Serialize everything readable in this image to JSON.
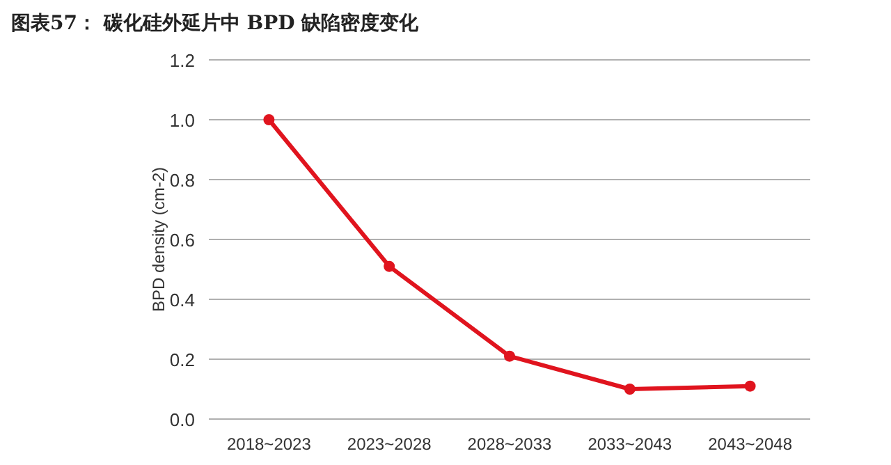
{
  "chart_data": {
    "type": "line",
    "title": "图表57：  碳化硅外延片中 BPD 缺陷密度变化",
    "ylabel": "BPD density (cm-2)",
    "categories": [
      "2018~2023",
      "2023~2028",
      "2028~2033",
      "2033~2043",
      "2043~2048"
    ],
    "series": [
      {
        "color": "#e0141e",
        "values": [
          1.0,
          0.51,
          0.21,
          0.1,
          0.11
        ]
      }
    ],
    "ylim": [
      0,
      1.2
    ],
    "yticks": [
      {
        "value": 0,
        "label": "0.0"
      },
      0.2,
      0.4,
      0.6,
      0.8,
      {
        "value": 1,
        "label": "1.0"
      },
      1.2
    ],
    "grid": "y",
    "marker": "circle",
    "line_style": "solid"
  }
}
